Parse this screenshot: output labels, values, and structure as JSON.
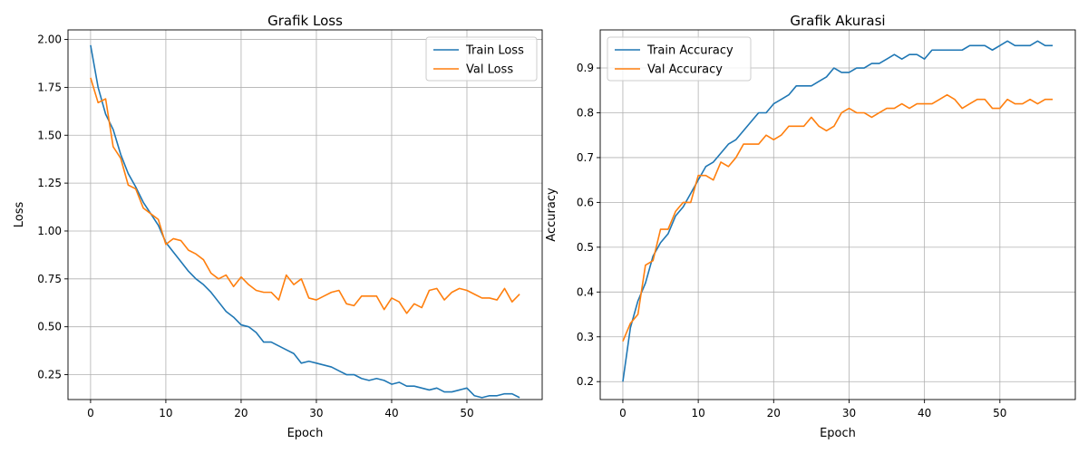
{
  "chart_data": [
    {
      "type": "line",
      "title": "Grafik Loss",
      "xlabel": "Epoch",
      "ylabel": "Loss",
      "xlim": [
        -3,
        60
      ],
      "ylim": [
        0.12,
        2.05
      ],
      "xticks": [
        0,
        10,
        20,
        30,
        40,
        50
      ],
      "yticks": [
        0.25,
        0.5,
        0.75,
        1.0,
        1.25,
        1.5,
        1.75,
        2.0
      ],
      "ytick_format": 2,
      "grid": true,
      "legend_position": "top-right",
      "series": [
        {
          "name": "Train Loss",
          "color": "#1f77b4",
          "values": [
            1.97,
            1.75,
            1.61,
            1.53,
            1.4,
            1.3,
            1.23,
            1.15,
            1.09,
            1.03,
            0.94,
            0.89,
            0.84,
            0.79,
            0.75,
            0.72,
            0.68,
            0.63,
            0.58,
            0.55,
            0.51,
            0.5,
            0.47,
            0.42,
            0.42,
            0.4,
            0.38,
            0.36,
            0.31,
            0.32,
            0.31,
            0.3,
            0.29,
            0.27,
            0.25,
            0.25,
            0.23,
            0.22,
            0.23,
            0.22,
            0.2,
            0.21,
            0.19,
            0.19,
            0.18,
            0.17,
            0.18,
            0.16,
            0.16,
            0.17,
            0.18,
            0.14,
            0.13,
            0.14,
            0.14,
            0.15,
            0.15,
            0.13
          ]
        },
        {
          "name": "Val Loss",
          "color": "#ff7f0e",
          "values": [
            1.8,
            1.67,
            1.69,
            1.44,
            1.38,
            1.24,
            1.22,
            1.12,
            1.09,
            1.06,
            0.93,
            0.96,
            0.95,
            0.9,
            0.88,
            0.85,
            0.78,
            0.75,
            0.77,
            0.71,
            0.76,
            0.72,
            0.69,
            0.68,
            0.68,
            0.64,
            0.77,
            0.72,
            0.75,
            0.65,
            0.64,
            0.66,
            0.68,
            0.69,
            0.62,
            0.61,
            0.66,
            0.66,
            0.66,
            0.59,
            0.65,
            0.63,
            0.57,
            0.62,
            0.6,
            0.69,
            0.7,
            0.64,
            0.68,
            0.7,
            0.69,
            0.67,
            0.65,
            0.65,
            0.64,
            0.7,
            0.63,
            0.67
          ]
        }
      ]
    },
    {
      "type": "line",
      "title": "Grafik Akurasi",
      "xlabel": "Epoch",
      "ylabel": "Accuracy",
      "xlim": [
        -3,
        60
      ],
      "ylim": [
        0.16,
        0.985
      ],
      "xticks": [
        0,
        10,
        20,
        30,
        40,
        50
      ],
      "yticks": [
        0.2,
        0.3,
        0.4,
        0.5,
        0.6,
        0.7,
        0.8,
        0.9
      ],
      "ytick_format": 1,
      "grid": true,
      "legend_position": "top-left",
      "series": [
        {
          "name": "Train Accuracy",
          "color": "#1f77b4",
          "values": [
            0.2,
            0.32,
            0.38,
            0.42,
            0.48,
            0.51,
            0.53,
            0.57,
            0.59,
            0.62,
            0.65,
            0.68,
            0.69,
            0.71,
            0.73,
            0.74,
            0.76,
            0.78,
            0.8,
            0.8,
            0.82,
            0.83,
            0.84,
            0.86,
            0.86,
            0.86,
            0.87,
            0.88,
            0.9,
            0.89,
            0.89,
            0.9,
            0.9,
            0.91,
            0.91,
            0.92,
            0.93,
            0.92,
            0.93,
            0.93,
            0.92,
            0.94,
            0.94,
            0.94,
            0.94,
            0.94,
            0.95,
            0.95,
            0.95,
            0.94,
            0.95,
            0.96,
            0.95,
            0.95,
            0.95,
            0.96,
            0.95,
            0.95
          ]
        },
        {
          "name": "Val Accuracy",
          "color": "#ff7f0e",
          "values": [
            0.29,
            0.33,
            0.35,
            0.46,
            0.47,
            0.54,
            0.54,
            0.58,
            0.6,
            0.6,
            0.66,
            0.66,
            0.65,
            0.69,
            0.68,
            0.7,
            0.73,
            0.73,
            0.73,
            0.75,
            0.74,
            0.75,
            0.77,
            0.77,
            0.77,
            0.79,
            0.77,
            0.76,
            0.77,
            0.8,
            0.81,
            0.8,
            0.8,
            0.79,
            0.8,
            0.81,
            0.81,
            0.82,
            0.81,
            0.82,
            0.82,
            0.82,
            0.83,
            0.84,
            0.83,
            0.81,
            0.82,
            0.83,
            0.83,
            0.81,
            0.81,
            0.83,
            0.82,
            0.82,
            0.83,
            0.82,
            0.83,
            0.83
          ]
        }
      ]
    }
  ]
}
